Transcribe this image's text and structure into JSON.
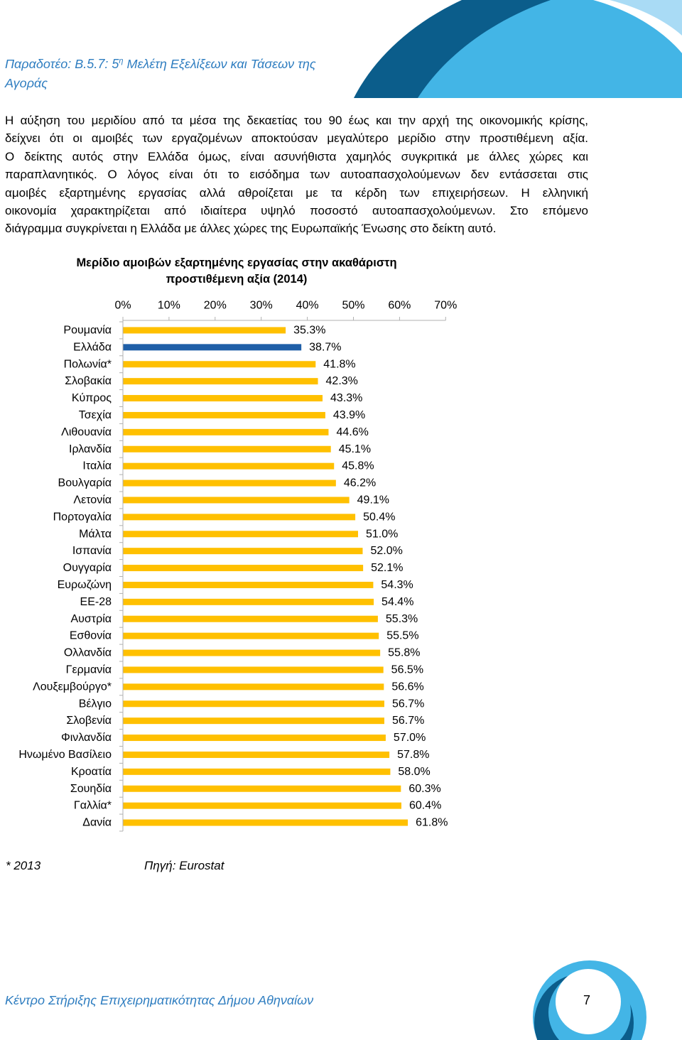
{
  "header": {
    "title_prefix": "Παραδοτέο: Β.5.7: 5",
    "title_sup": "η",
    "title_rest": "Μελέτη Εξελίξεων και Τάσεων της",
    "title_line2": "Αγοράς"
  },
  "body": {
    "lines": [
      "Η αύξηση του μεριδίου από τα μέσα της δεκαετίας του 90 έως και την αρχή της οικονομικής κρίσης,",
      "δείχνει ότι οι αμοιβές των εργαζομένων αποκτούσαν μεγαλύτερο μερίδιο στην προστιθέμενη αξία.",
      "Ο δείκτης αυτός στην Ελλάδα όμως, είναι ασυνήθιστα χαμηλός συγκριτικά με άλλες χώρες και",
      "παραπλανητικός. Ο λόγος είναι ότι το εισόδημα των αυτοαπασχολούμενων δεν εντάσσεται στις",
      "αμοιβές εξαρτημένης εργασίας αλλά αθροίζεται με τα κέρδη των επιχειρήσεων. Η ελληνική",
      "οικονομία χαρακτηρίζεται από ιδιαίτερα υψηλό ποσοστό αυτοαπασχολούμενων. Στο επόμενο",
      "διάγραμμα συγκρίνεται η Ελλάδα με άλλες χώρες της Ευρωπαϊκής Ένωσης στο δείκτη αυτό."
    ]
  },
  "chart_data": {
    "type": "bar",
    "orientation": "horizontal",
    "title": [
      "Μερίδιο αμοιβών εξαρτημένης εργασίας στην ακαθάριστη",
      "προστιθέμενη αξία (2014)"
    ],
    "xlabel": "",
    "ylabel": "",
    "categories": [
      "Ρουμανία",
      "Ελλάδα",
      "Πολωνία*",
      "Σλοβακία",
      "Κύπρος",
      "Τσεχία",
      "Λιθουανία",
      "Ιρλανδία",
      "Ιταλία",
      "Βουλγαρία",
      "Λετονία",
      "Πορτογαλία",
      "Μάλτα",
      "Ισπανία",
      "Ουγγαρία",
      "Ευρωζώνη",
      "ΕΕ-28",
      "Αυστρία",
      "Εσθονία",
      "Ολλανδία",
      "Γερμανία",
      "Λουξεμβούργο*",
      "Βέλγιο",
      "Σλοβενία",
      "Φινλανδία",
      "Ηνωμένο Βασίλειο",
      "Κροατία",
      "Σουηδία",
      "Γαλλία*",
      "Δανία"
    ],
    "values": [
      35.3,
      38.7,
      41.8,
      42.3,
      43.3,
      43.9,
      44.6,
      45.1,
      45.8,
      46.2,
      49.1,
      50.4,
      51.0,
      52.0,
      52.1,
      54.3,
      54.4,
      55.3,
      55.5,
      55.8,
      56.5,
      56.6,
      56.7,
      56.7,
      57.0,
      57.8,
      58.0,
      60.3,
      60.4,
      61.8
    ],
    "value_labels": [
      "35.3%",
      "38.7%",
      "41.8%",
      "42.3%",
      "43.3%",
      "43.9%",
      "44.6%",
      "45.1%",
      "45.8%",
      "46.2%",
      "49.1%",
      "50.4%",
      "51.0%",
      "52.0%",
      "52.1%",
      "54.3%",
      "54.4%",
      "55.3%",
      "55.5%",
      "55.8%",
      "56.5%",
      "56.6%",
      "56.7%",
      "56.7%",
      "57.0%",
      "57.8%",
      "58.0%",
      "60.3%",
      "60.4%",
      "61.8%"
    ],
    "xlim": [
      0,
      70
    ],
    "x_ticks": [
      0,
      10,
      20,
      30,
      40,
      50,
      60,
      70
    ],
    "x_tick_labels": [
      "0%",
      "10%",
      "20%",
      "30%",
      "40%",
      "50%",
      "60%",
      "70%"
    ],
    "x_axis_position": "top",
    "grid": false,
    "legend": "none",
    "highlight_index": 1,
    "colors": {
      "bar": "#FFC000",
      "highlight": "#1F5FA8",
      "axis": "#B0B0B0"
    }
  },
  "notes": {
    "asterisk_note": "* 2013",
    "source": "Πηγή: Eurostat"
  },
  "footer": {
    "organization": "Κέντρο Στήριξης Επιχειρηματικότητας Δήμου Αθηναίων",
    "page_number": "7"
  },
  "theme": {
    "accent_blue": "#2E7DC0",
    "dark_blue": "#0B5D8B",
    "light_blue": "#43B5E6",
    "pale_blue": "#A9DBF5"
  }
}
